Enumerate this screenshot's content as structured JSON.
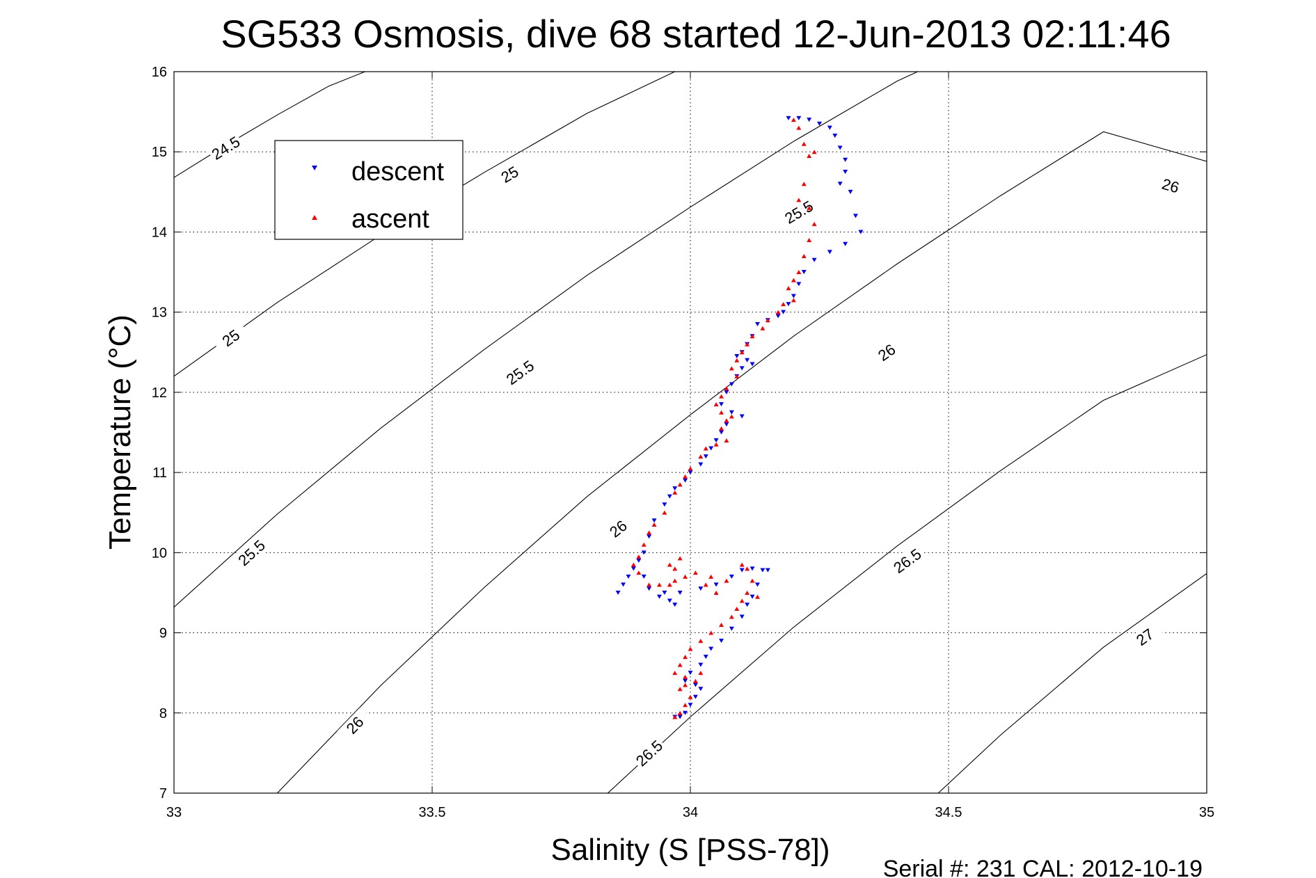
{
  "chart_data": {
    "type": "scatter",
    "title": "SG533 Osmosis, dive 68 started 12-Jun-2013 02:11:46",
    "xlabel": "Salinity (S [PSS-78])",
    "ylabel": "Temperature (°C)",
    "footer": "Serial #: 231  CAL: 2012-10-19",
    "xlim": [
      33,
      35
    ],
    "ylim": [
      7,
      16
    ],
    "grid": true,
    "legend_position": "top-left",
    "xticks": [
      {
        "value": 33,
        "label": "33"
      },
      {
        "value": 33.5,
        "label": "33.5"
      },
      {
        "value": 34,
        "label": "34"
      },
      {
        "value": 34.5,
        "label": "34.5"
      },
      {
        "value": 35,
        "label": "35"
      }
    ],
    "yticks": [
      {
        "value": 7,
        "label": "7"
      },
      {
        "value": 8,
        "label": "8"
      },
      {
        "value": 9,
        "label": "9"
      },
      {
        "value": 10,
        "label": "10"
      },
      {
        "value": 11,
        "label": "11"
      },
      {
        "value": 12,
        "label": "12"
      },
      {
        "value": 13,
        "label": "13"
      },
      {
        "value": 14,
        "label": "14"
      },
      {
        "value": 15,
        "label": "15"
      },
      {
        "value": 16,
        "label": "16"
      }
    ],
    "contours": [
      {
        "level": "24.5",
        "points": [
          [
            33.0,
            14.68
          ],
          [
            33.1,
            15.08
          ],
          [
            33.2,
            15.46
          ],
          [
            33.3,
            15.82
          ],
          [
            33.37,
            16.0
          ]
        ],
        "labels": [
          {
            "s": 33.1,
            "t": 15.05,
            "text": "24.5"
          }
        ]
      },
      {
        "level": "25",
        "points": [
          [
            33.0,
            12.2
          ],
          [
            33.2,
            13.12
          ],
          [
            33.4,
            13.96
          ],
          [
            33.6,
            14.74
          ],
          [
            33.8,
            15.48
          ],
          [
            33.97,
            16.0
          ]
        ],
        "labels": [
          {
            "s": 33.11,
            "t": 12.68,
            "text": "25"
          },
          {
            "s": 33.65,
            "t": 14.72,
            "text": "25"
          }
        ]
      },
      {
        "level": "25.5",
        "points": [
          [
            33.0,
            9.32
          ],
          [
            33.2,
            10.48
          ],
          [
            33.4,
            11.55
          ],
          [
            33.6,
            12.53
          ],
          [
            33.8,
            13.46
          ],
          [
            34.0,
            14.31
          ],
          [
            34.2,
            15.13
          ],
          [
            34.4,
            15.88
          ],
          [
            34.44,
            16.0
          ]
        ],
        "labels": [
          {
            "s": 33.15,
            "t": 10.0,
            "text": "25.5"
          },
          {
            "s": 33.67,
            "t": 12.25,
            "text": "25.5"
          },
          {
            "s": 34.21,
            "t": 14.25,
            "text": "25.5"
          }
        ]
      },
      {
        "level": "26",
        "points": [
          [
            33.2,
            7.0
          ],
          [
            33.4,
            8.34
          ],
          [
            33.6,
            9.56
          ],
          [
            33.8,
            10.7
          ],
          [
            34.0,
            11.72
          ],
          [
            34.2,
            12.7
          ],
          [
            34.4,
            13.6
          ],
          [
            34.6,
            14.45
          ],
          [
            34.8,
            15.25
          ],
          [
            35.0,
            14.88
          ]
        ],
        "labels": [
          {
            "s": 33.35,
            "t": 7.85,
            "text": "26"
          },
          {
            "s": 33.86,
            "t": 10.3,
            "text": "26"
          },
          {
            "s": 34.38,
            "t": 12.5,
            "text": "26"
          },
          {
            "s": 34.93,
            "t": 14.58,
            "text": "26"
          }
        ]
      },
      {
        "level": "26.5",
        "points": [
          [
            33.84,
            7.0
          ],
          [
            34.0,
            7.95
          ],
          [
            34.2,
            9.07
          ],
          [
            34.4,
            10.08
          ],
          [
            34.6,
            11.02
          ],
          [
            34.8,
            11.9
          ],
          [
            35.0,
            12.47
          ]
        ],
        "labels": [
          {
            "s": 33.92,
            "t": 7.5,
            "text": "26.5"
          },
          {
            "s": 34.42,
            "t": 9.9,
            "text": "26.5"
          }
        ]
      },
      {
        "level": "27",
        "points": [
          [
            34.48,
            7.0
          ],
          [
            34.6,
            7.72
          ],
          [
            34.8,
            8.82
          ],
          [
            35.0,
            9.74
          ]
        ],
        "labels": [
          {
            "s": 34.88,
            "t": 8.95,
            "text": "27"
          }
        ]
      }
    ],
    "series": [
      {
        "name": "descent",
        "color": "#0000ff",
        "marker": "triangle-down",
        "points": [
          [
            34.19,
            15.42
          ],
          [
            34.21,
            15.42
          ],
          [
            34.23,
            15.4
          ],
          [
            34.25,
            15.35
          ],
          [
            34.27,
            15.3
          ],
          [
            34.28,
            15.2
          ],
          [
            34.29,
            15.05
          ],
          [
            34.3,
            14.9
          ],
          [
            34.3,
            14.75
          ],
          [
            34.29,
            14.6
          ],
          [
            34.31,
            14.5
          ],
          [
            34.32,
            14.2
          ],
          [
            34.33,
            14.0
          ],
          [
            34.3,
            13.85
          ],
          [
            34.27,
            13.75
          ],
          [
            34.24,
            13.65
          ],
          [
            34.22,
            13.5
          ],
          [
            34.21,
            13.35
          ],
          [
            34.2,
            13.2
          ],
          [
            34.19,
            13.1
          ],
          [
            34.18,
            13.0
          ],
          [
            34.17,
            12.95
          ],
          [
            34.15,
            12.9
          ],
          [
            34.13,
            12.85
          ],
          [
            34.12,
            12.7
          ],
          [
            34.11,
            12.6
          ],
          [
            34.1,
            12.5
          ],
          [
            34.09,
            12.45
          ],
          [
            34.11,
            12.4
          ],
          [
            34.12,
            12.35
          ],
          [
            34.1,
            12.3
          ],
          [
            34.09,
            12.2
          ],
          [
            34.08,
            12.1
          ],
          [
            34.07,
            12.0
          ],
          [
            34.06,
            11.85
          ],
          [
            34.08,
            11.75
          ],
          [
            34.1,
            11.7
          ],
          [
            34.07,
            11.6
          ],
          [
            34.06,
            11.5
          ],
          [
            34.05,
            11.4
          ],
          [
            34.04,
            11.3
          ],
          [
            34.03,
            11.2
          ],
          [
            34.02,
            11.1
          ],
          [
            34.0,
            11.0
          ],
          [
            33.99,
            10.9
          ],
          [
            33.97,
            10.8
          ],
          [
            33.96,
            10.7
          ],
          [
            33.95,
            10.6
          ],
          [
            33.93,
            10.4
          ],
          [
            33.92,
            10.2
          ],
          [
            33.91,
            10.0
          ],
          [
            33.9,
            9.9
          ],
          [
            33.89,
            9.8
          ],
          [
            33.88,
            9.7
          ],
          [
            33.87,
            9.6
          ],
          [
            33.86,
            9.5
          ],
          [
            33.92,
            9.55
          ],
          [
            33.95,
            9.5
          ],
          [
            33.98,
            9.5
          ],
          [
            34.02,
            9.55
          ],
          [
            34.05,
            9.6
          ],
          [
            34.08,
            9.7
          ],
          [
            34.1,
            9.78
          ],
          [
            34.12,
            9.8
          ],
          [
            34.14,
            9.78
          ],
          [
            34.15,
            9.78
          ],
          [
            34.13,
            9.6
          ],
          [
            34.12,
            9.45
          ],
          [
            34.11,
            9.35
          ],
          [
            34.1,
            9.2
          ],
          [
            34.08,
            9.05
          ],
          [
            34.06,
            8.9
          ],
          [
            34.04,
            8.8
          ],
          [
            34.03,
            8.7
          ],
          [
            34.02,
            8.6
          ],
          [
            34.0,
            8.5
          ],
          [
            33.99,
            8.4
          ],
          [
            34.01,
            8.35
          ],
          [
            34.02,
            8.3
          ],
          [
            34.01,
            8.2
          ],
          [
            34.0,
            8.1
          ],
          [
            33.99,
            8.0
          ],
          [
            33.98,
            7.95
          ],
          [
            33.97,
            7.95
          ],
          [
            33.96,
            9.4
          ],
          [
            33.94,
            9.45
          ],
          [
            33.91,
            9.7
          ],
          [
            33.97,
            9.35
          ]
        ]
      },
      {
        "name": "ascent",
        "color": "#ff0000",
        "marker": "triangle-up",
        "points": [
          [
            34.2,
            15.4
          ],
          [
            34.21,
            15.3
          ],
          [
            34.22,
            15.1
          ],
          [
            34.23,
            14.95
          ],
          [
            34.24,
            15.0
          ],
          [
            34.22,
            14.6
          ],
          [
            34.21,
            14.4
          ],
          [
            34.23,
            14.3
          ],
          [
            34.24,
            14.1
          ],
          [
            34.23,
            13.9
          ],
          [
            34.22,
            13.7
          ],
          [
            34.21,
            13.5
          ],
          [
            34.2,
            13.4
          ],
          [
            34.19,
            13.3
          ],
          [
            34.2,
            13.15
          ],
          [
            34.18,
            13.1
          ],
          [
            34.17,
            13.0
          ],
          [
            34.15,
            12.9
          ],
          [
            34.14,
            12.8
          ],
          [
            34.12,
            12.7
          ],
          [
            34.11,
            12.6
          ],
          [
            34.1,
            12.5
          ],
          [
            34.09,
            12.4
          ],
          [
            34.08,
            12.3
          ],
          [
            34.09,
            12.2
          ],
          [
            34.07,
            12.05
          ],
          [
            34.06,
            11.95
          ],
          [
            34.05,
            11.85
          ],
          [
            34.06,
            11.75
          ],
          [
            34.07,
            11.65
          ],
          [
            34.08,
            11.7
          ],
          [
            34.06,
            11.55
          ],
          [
            34.07,
            11.4
          ],
          [
            34.05,
            11.35
          ],
          [
            34.03,
            11.3
          ],
          [
            34.02,
            11.2
          ],
          [
            34.0,
            11.05
          ],
          [
            33.99,
            10.95
          ],
          [
            33.98,
            10.85
          ],
          [
            33.97,
            10.75
          ],
          [
            33.95,
            10.5
          ],
          [
            33.93,
            10.35
          ],
          [
            33.92,
            10.25
          ],
          [
            33.91,
            10.1
          ],
          [
            33.9,
            9.95
          ],
          [
            33.89,
            9.85
          ],
          [
            33.9,
            9.75
          ],
          [
            33.92,
            9.6
          ],
          [
            33.94,
            9.6
          ],
          [
            33.96,
            9.85
          ],
          [
            33.97,
            9.8
          ],
          [
            33.99,
            9.7
          ],
          [
            34.01,
            9.75
          ],
          [
            34.03,
            9.6
          ],
          [
            34.05,
            9.5
          ],
          [
            34.07,
            9.65
          ],
          [
            34.1,
            9.85
          ],
          [
            34.11,
            9.8
          ],
          [
            34.12,
            9.65
          ],
          [
            34.11,
            9.5
          ],
          [
            34.13,
            9.45
          ],
          [
            34.1,
            9.4
          ],
          [
            34.09,
            9.3
          ],
          [
            34.08,
            9.2
          ],
          [
            34.06,
            9.1
          ],
          [
            34.04,
            9.0
          ],
          [
            34.02,
            8.9
          ],
          [
            34.0,
            8.8
          ],
          [
            33.99,
            8.7
          ],
          [
            33.98,
            8.6
          ],
          [
            33.97,
            8.5
          ],
          [
            33.99,
            8.45
          ],
          [
            34.02,
            8.5
          ],
          [
            34.01,
            8.4
          ],
          [
            33.99,
            8.35
          ],
          [
            33.98,
            8.3
          ],
          [
            34.0,
            8.2
          ],
          [
            33.99,
            8.1
          ],
          [
            33.98,
            8.0
          ],
          [
            33.97,
            7.95
          ],
          [
            33.98,
            9.93
          ],
          [
            33.97,
            9.65
          ],
          [
            34.04,
            9.7
          ],
          [
            33.96,
            9.6
          ]
        ]
      }
    ]
  }
}
